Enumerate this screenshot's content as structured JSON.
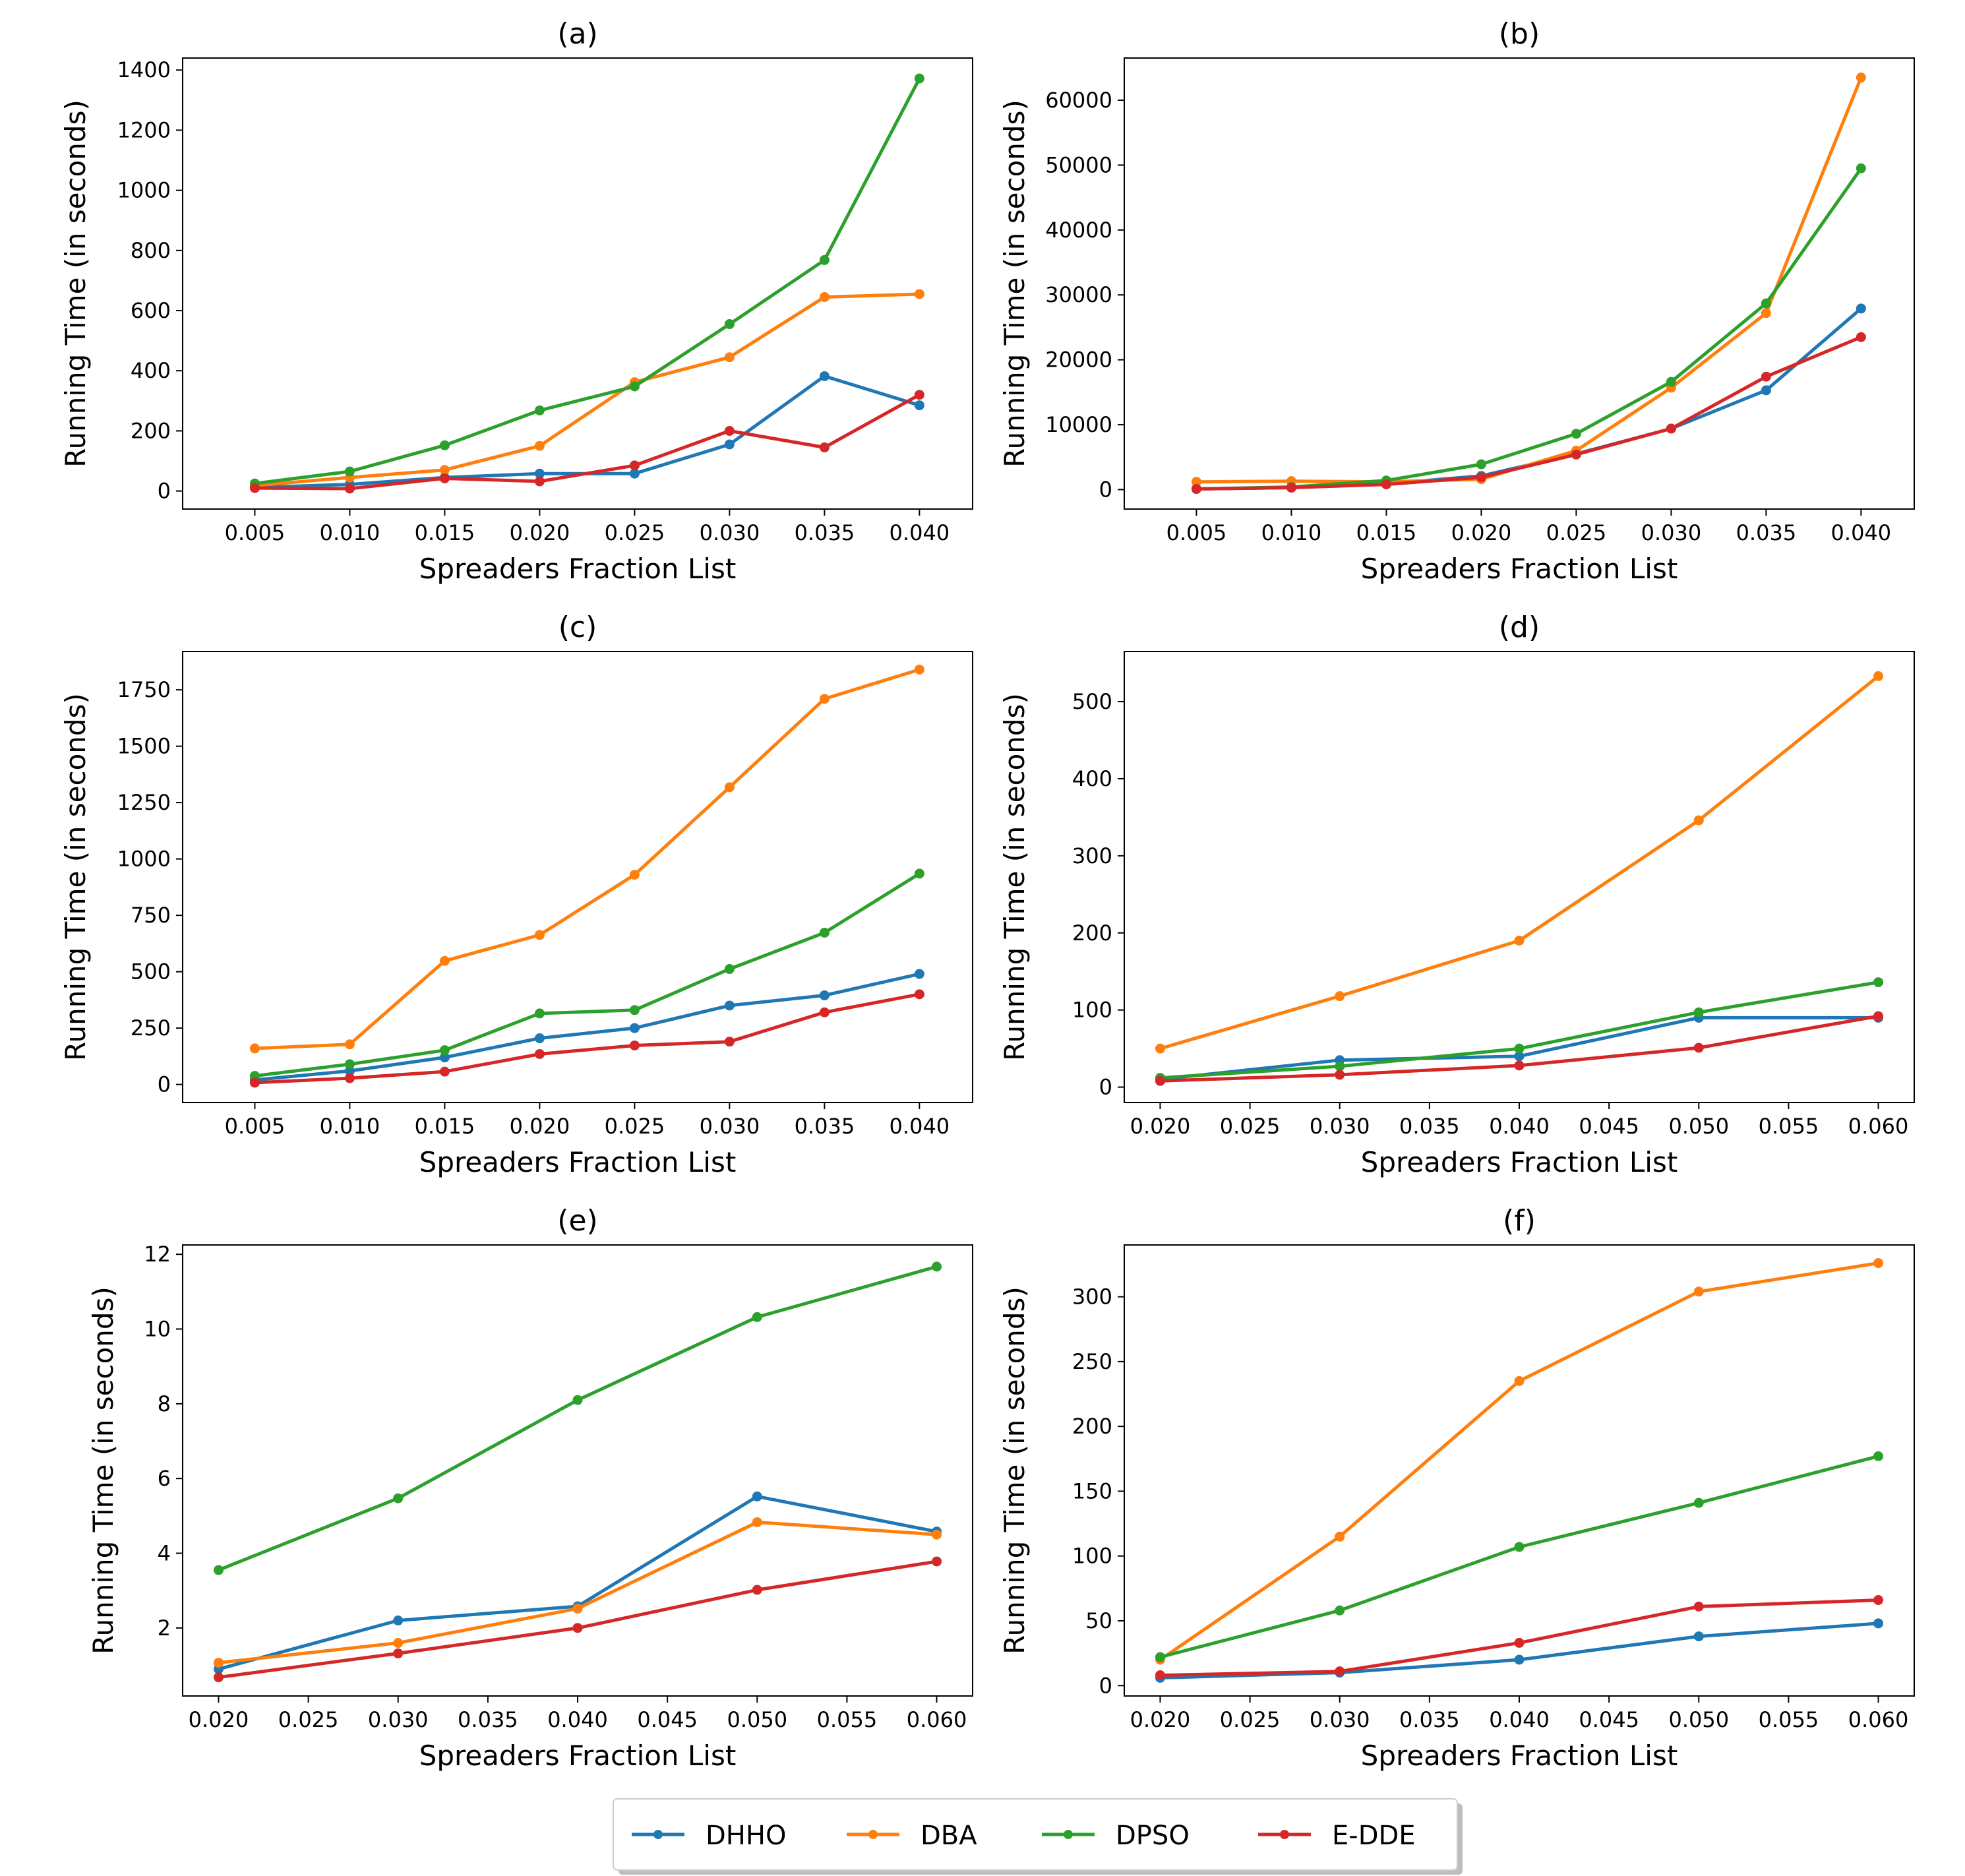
{
  "legend": {
    "items": [
      {
        "name": "DHHO",
        "color": "#1f77b4"
      },
      {
        "name": "DBA",
        "color": "#ff7f0e"
      },
      {
        "name": "DPSO",
        "color": "#2ca02c"
      },
      {
        "name": "E-DDE",
        "color": "#d62728"
      }
    ],
    "position": "bottom-center"
  },
  "chart_data": [
    {
      "type": "line",
      "title": "(a)",
      "xlabel": "Spreaders Fraction List",
      "ylabel": "Running Time (in seconds)",
      "x": [
        0.005,
        0.01,
        0.015,
        0.02,
        0.025,
        0.03,
        0.035,
        0.04
      ],
      "xlim": [
        0.0012,
        0.0428
      ],
      "ylim": [
        -60,
        1440
      ],
      "xticks": [
        "0.005",
        "0.010",
        "0.015",
        "0.020",
        "0.025",
        "0.030",
        "0.035",
        "0.040"
      ],
      "yticks": [
        0,
        200,
        400,
        600,
        800,
        1000,
        1200,
        1400
      ],
      "series": [
        {
          "name": "DHHO",
          "values": [
            12,
            22,
            45,
            58,
            58,
            155,
            382,
            285
          ]
        },
        {
          "name": "DBA",
          "values": [
            18,
            45,
            70,
            150,
            362,
            445,
            645,
            655
          ]
        },
        {
          "name": "DPSO",
          "values": [
            25,
            65,
            152,
            268,
            348,
            555,
            768,
            1372
          ]
        },
        {
          "name": "E-DDE",
          "values": [
            10,
            8,
            42,
            32,
            85,
            200,
            145,
            320
          ]
        }
      ]
    },
    {
      "type": "line",
      "title": "(b)",
      "xlabel": "Spreaders Fraction List",
      "ylabel": "Running Time (in seconds)",
      "x": [
        0.005,
        0.01,
        0.015,
        0.02,
        0.025,
        0.03,
        0.035,
        0.04
      ],
      "xlim": [
        0.0012,
        0.0428
      ],
      "ylim": [
        -3000,
        66500
      ],
      "xticks": [
        "0.005",
        "0.010",
        "0.015",
        "0.020",
        "0.025",
        "0.030",
        "0.035",
        "0.040"
      ],
      "yticks": [
        0,
        10000,
        20000,
        30000,
        40000,
        50000,
        60000
      ],
      "series": [
        {
          "name": "DHHO",
          "values": [
            100,
            300,
            900,
            2100,
            5500,
            9400,
            15300,
            27900
          ]
        },
        {
          "name": "DBA",
          "values": [
            1200,
            1300,
            1200,
            1600,
            6000,
            15700,
            27200,
            63500
          ]
        },
        {
          "name": "DPSO",
          "values": [
            100,
            400,
            1400,
            3900,
            8600,
            16600,
            28700,
            49500
          ]
        },
        {
          "name": "E-DDE",
          "values": [
            100,
            300,
            800,
            1900,
            5400,
            9400,
            17400,
            23500
          ]
        }
      ]
    },
    {
      "type": "line",
      "title": "(c)",
      "xlabel": "Spreaders Fraction List",
      "ylabel": "Running Time (in seconds)",
      "x": [
        0.005,
        0.01,
        0.015,
        0.02,
        0.025,
        0.03,
        0.035,
        0.04
      ],
      "xlim": [
        0.0012,
        0.0428
      ],
      "ylim": [
        -80,
        1920
      ],
      "xticks": [
        "0.005",
        "0.010",
        "0.015",
        "0.020",
        "0.025",
        "0.030",
        "0.035",
        "0.040"
      ],
      "yticks": [
        0,
        250,
        500,
        750,
        1000,
        1250,
        1500,
        1750
      ],
      "series": [
        {
          "name": "DHHO",
          "values": [
            20,
            60,
            120,
            205,
            250,
            350,
            395,
            490
          ]
        },
        {
          "name": "DBA",
          "values": [
            160,
            178,
            548,
            663,
            930,
            1318,
            1710,
            1840
          ]
        },
        {
          "name": "DPSO",
          "values": [
            38,
            90,
            152,
            315,
            330,
            512,
            673,
            935
          ]
        },
        {
          "name": "E-DDE",
          "values": [
            8,
            28,
            57,
            135,
            173,
            190,
            320,
            400
          ]
        }
      ]
    },
    {
      "type": "line",
      "title": "(d)",
      "xlabel": "Spreaders Fraction List",
      "ylabel": "Running Time (in seconds)",
      "x": [
        0.02,
        0.03,
        0.04,
        0.05,
        0.06
      ],
      "xlim": [
        0.018,
        0.062
      ],
      "ylim": [
        -20,
        565
      ],
      "xticks": [
        "0.020",
        "0.025",
        "0.030",
        "0.035",
        "0.040",
        "0.045",
        "0.050",
        "0.055",
        "0.060"
      ],
      "xtick_values": [
        0.02,
        0.025,
        0.03,
        0.035,
        0.04,
        0.045,
        0.05,
        0.055,
        0.06
      ],
      "yticks": [
        0,
        100,
        200,
        300,
        400,
        500
      ],
      "series": [
        {
          "name": "DHHO",
          "values": [
            10,
            35,
            40,
            90,
            90
          ]
        },
        {
          "name": "DBA",
          "values": [
            50,
            118,
            190,
            346,
            533
          ]
        },
        {
          "name": "DPSO",
          "values": [
            12,
            27,
            50,
            97,
            136
          ]
        },
        {
          "name": "E-DDE",
          "values": [
            8,
            16,
            28,
            51,
            92
          ]
        }
      ]
    },
    {
      "type": "line",
      "title": "(e)",
      "xlabel": "Spreaders Fraction List",
      "ylabel": "Running Time (in seconds)",
      "x": [
        0.02,
        0.03,
        0.04,
        0.05,
        0.06
      ],
      "xlim": [
        0.018,
        0.062
      ],
      "ylim": [
        0.18,
        12.25
      ],
      "xticks": [
        "0.020",
        "0.025",
        "0.030",
        "0.035",
        "0.040",
        "0.045",
        "0.050",
        "0.055",
        "0.060"
      ],
      "xtick_values": [
        0.02,
        0.025,
        0.03,
        0.035,
        0.04,
        0.045,
        0.05,
        0.055,
        0.06
      ],
      "yticks": [
        2,
        4,
        6,
        8,
        10,
        12
      ],
      "series": [
        {
          "name": "DHHO",
          "values": [
            0.9,
            2.2,
            2.58,
            5.52,
            4.58
          ]
        },
        {
          "name": "DBA",
          "values": [
            1.07,
            1.6,
            2.52,
            4.83,
            4.5
          ]
        },
        {
          "name": "DPSO",
          "values": [
            3.55,
            5.47,
            8.1,
            10.32,
            11.67
          ]
        },
        {
          "name": "E-DDE",
          "values": [
            0.68,
            1.32,
            2.0,
            3.02,
            3.78
          ]
        }
      ]
    },
    {
      "type": "line",
      "title": "(f)",
      "xlabel": "Spreaders Fraction List",
      "ylabel": "Running Time (in seconds)",
      "x": [
        0.02,
        0.03,
        0.04,
        0.05,
        0.06
      ],
      "xlim": [
        0.018,
        0.062
      ],
      "ylim": [
        -8,
        340
      ],
      "xticks": [
        "0.020",
        "0.025",
        "0.030",
        "0.035",
        "0.040",
        "0.045",
        "0.050",
        "0.055",
        "0.060"
      ],
      "xtick_values": [
        0.02,
        0.025,
        0.03,
        0.035,
        0.04,
        0.045,
        0.05,
        0.055,
        0.06
      ],
      "yticks": [
        0,
        50,
        100,
        150,
        200,
        250,
        300
      ],
      "series": [
        {
          "name": "DHHO",
          "values": [
            6,
            10,
            20,
            38,
            48
          ]
        },
        {
          "name": "DBA",
          "values": [
            20,
            115,
            235,
            304,
            326
          ]
        },
        {
          "name": "DPSO",
          "values": [
            22,
            58,
            107,
            141,
            177
          ]
        },
        {
          "name": "E-DDE",
          "values": [
            8,
            11,
            33,
            61,
            66
          ]
        }
      ]
    }
  ]
}
